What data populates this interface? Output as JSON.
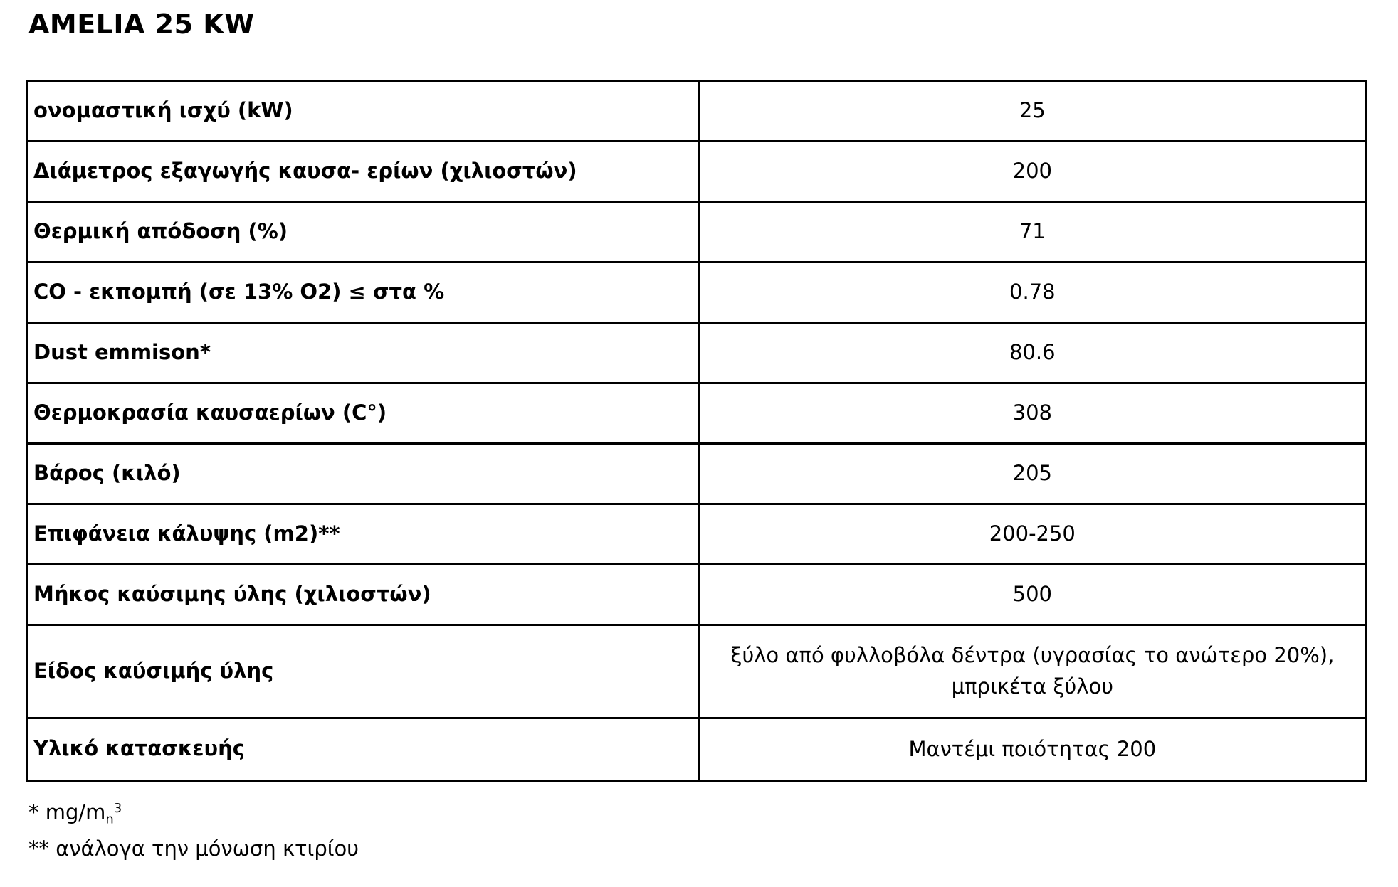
{
  "page": {
    "title": "AMELIA 25 KW"
  },
  "table": {
    "rows": [
      {
        "label": "ονομαστική ισχύ (kW)",
        "value": "25"
      },
      {
        "label": "Διάμετρος εξαγωγής καυσα- ερίων (χιλιοστών)",
        "value": "200"
      },
      {
        "label": "Θερμική απόδοση (%)",
        "value": "71"
      },
      {
        "label": "CO - εκπομπή (σε 13% O2) ≤ στα %",
        "value": "0.78"
      },
      {
        "label": "Dust emmison*",
        "value": "80.6"
      },
      {
        "label": "Θερμοκρασία καυσαερίων (C°)",
        "value": "308"
      },
      {
        "label": "Βάρος (κιλό)",
        "value": "205"
      },
      {
        "label": "Επιφάνεια κάλυψης (m2)**",
        "value": "200-250"
      },
      {
        "label": "Μήκος καύσιμης ύλης (χιλιοστών)",
        "value": "500"
      },
      {
        "label": "Είδος καύσιμής ύλης",
        "value": "ξύλο από φυλλοβόλα δέντρα (υγρασίας το ανώτερο 20%), μπρικέτα ξύλου"
      },
      {
        "label": "Υλικό κατασκευής",
        "value": "Μαντέμι ποιότητας 200"
      }
    ]
  },
  "footnotes": {
    "first_prefix": "* mg/m",
    "first_sub": "n",
    "first_sup": "3",
    "second": "** ανάλογα την μόνωση κτιρίου"
  },
  "colors": {
    "text": "#000000",
    "background": "#ffffff",
    "border": "#000000"
  }
}
